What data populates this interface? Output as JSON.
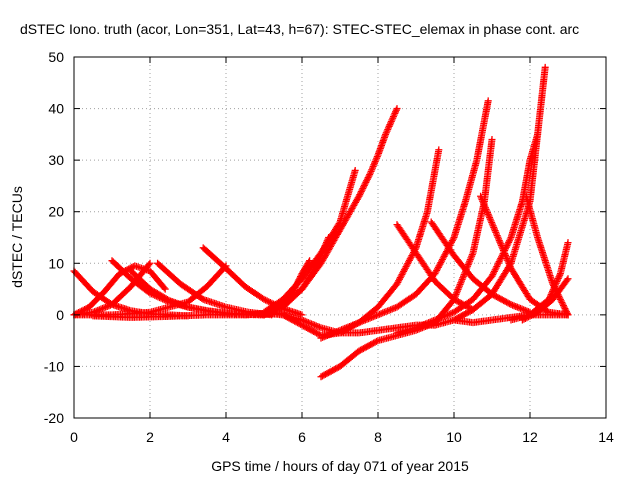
{
  "chart_data": {
    "type": "scatter",
    "title": "dSTEC Iono. truth (acor, Lon=351, Lat=43, h=67): STEC-STEC_elemax in phase cont. arc",
    "xlabel": "GPS time / hours of day 071 of year 2015",
    "ylabel": "dSTEC  / TECUs",
    "xlim": [
      0,
      14
    ],
    "ylim": [
      -20,
      50
    ],
    "xticks": [
      0,
      2,
      4,
      6,
      8,
      10,
      12,
      14
    ],
    "yticks": [
      -20,
      -10,
      0,
      10,
      20,
      30,
      40,
      50
    ],
    "grid": true,
    "marker": "plus",
    "color": "#ff0000",
    "series": [
      {
        "x": [
          0.0,
          0.5,
          1.0,
          1.5,
          2.0,
          2.5,
          3.0
        ],
        "y": [
          8.5,
          4.5,
          2.0,
          0.8,
          0.2,
          0.0,
          -0.2
        ]
      },
      {
        "x": [
          0.0,
          0.4,
          0.8,
          1.2,
          1.6,
          2.0,
          2.4
        ],
        "y": [
          0.0,
          1.5,
          4.5,
          8.0,
          9.5,
          8.5,
          5.0
        ]
      },
      {
        "x": [
          1.0,
          1.5,
          2.0,
          2.5,
          3.0,
          3.5,
          4.0,
          4.5,
          5.0
        ],
        "y": [
          10.5,
          7.0,
          4.2,
          2.5,
          1.5,
          0.8,
          0.3,
          0.1,
          0.0
        ]
      },
      {
        "x": [
          0.0,
          0.5,
          1.0,
          1.5,
          2.0
        ],
        "y": [
          0.0,
          0.5,
          2.0,
          5.5,
          10.0
        ]
      },
      {
        "x": [
          1.5,
          2.0,
          2.5,
          3.0,
          3.5,
          4.0,
          4.5,
          5.0
        ],
        "y": [
          8.5,
          5.0,
          2.8,
          1.5,
          0.8,
          0.3,
          0.1,
          0.0
        ]
      },
      {
        "x": [
          2.2,
          2.8,
          3.4,
          4.0,
          4.6,
          5.2
        ],
        "y": [
          10.0,
          6.0,
          3.0,
          1.5,
          0.5,
          0.0
        ]
      },
      {
        "x": [
          0.0,
          1.0,
          2.0,
          3.0,
          3.5,
          4.0
        ],
        "y": [
          0.0,
          0.0,
          0.5,
          2.5,
          5.5,
          9.5
        ]
      },
      {
        "x": [
          3.4,
          4.0,
          4.5,
          5.0,
          5.5,
          6.0
        ],
        "y": [
          13.0,
          9.0,
          5.5,
          3.0,
          1.2,
          0.0
        ]
      },
      {
        "x": [
          0.5,
          1.5,
          2.5,
          3.5,
          4.5,
          5.5
        ],
        "y": [
          -0.2,
          -0.5,
          -0.3,
          0.0,
          0.0,
          0.3
        ]
      },
      {
        "x": [
          4.5,
          5.0,
          5.5,
          6.0,
          6.5,
          7.0,
          7.5,
          8.0,
          8.5,
          9.0,
          9.5
        ],
        "y": [
          0.0,
          0.3,
          0.0,
          -1.0,
          -2.5,
          -3.5,
          -3.5,
          -3.0,
          -2.5,
          -2.0,
          -2.0
        ]
      },
      {
        "x": [
          5.0,
          5.5,
          5.8,
          6.0,
          6.2
        ],
        "y": [
          0.0,
          2.0,
          5.0,
          8.0,
          10.5
        ]
      },
      {
        "x": [
          5.0,
          5.5,
          6.0,
          6.3,
          6.5,
          6.7
        ],
        "y": [
          0.0,
          2.0,
          5.0,
          8.5,
          11.5,
          15.0
        ]
      },
      {
        "x": [
          5.0,
          5.5,
          6.0,
          6.5,
          7.0,
          7.2,
          7.4
        ],
        "y": [
          0.5,
          3.0,
          7.0,
          12.0,
          18.0,
          23.0,
          28.0
        ]
      },
      {
        "x": [
          5.0,
          5.5,
          6.0,
          6.5,
          7.0,
          7.5,
          7.8,
          8.0,
          8.2,
          8.5
        ],
        "y": [
          0.0,
          1.5,
          5.0,
          10.0,
          16.5,
          23.0,
          27.5,
          31.0,
          35.0,
          40.0
        ]
      },
      {
        "x": [
          5.5,
          6.0,
          6.5,
          7.0,
          7.5,
          8.0,
          8.5,
          9.0,
          9.3,
          9.6
        ],
        "y": [
          0.0,
          -2.0,
          -4.0,
          -3.5,
          -1.5,
          1.5,
          6.0,
          13.0,
          20.0,
          32.0
        ]
      },
      {
        "x": [
          6.5,
          7.0,
          7.5,
          8.0,
          8.5,
          9.0,
          9.5,
          10.0,
          10.3,
          10.6,
          10.9
        ],
        "y": [
          -4.5,
          -3.0,
          -1.5,
          0.0,
          1.5,
          4.0,
          8.0,
          15.0,
          22.0,
          30.0,
          41.5
        ]
      },
      {
        "x": [
          6.5,
          7.0,
          7.5,
          8.0,
          8.5,
          9.0,
          9.5,
          10.0,
          10.5,
          10.8,
          11.0
        ],
        "y": [
          -12.0,
          -10.0,
          -7.0,
          -5.0,
          -4.0,
          -3.0,
          -1.5,
          3.0,
          12.0,
          22.0,
          34.0
        ]
      },
      {
        "x": [
          8.5,
          9.0,
          9.5,
          10.0,
          10.5,
          11.0,
          11.5,
          11.8,
          12.0,
          12.2
        ],
        "y": [
          -3.5,
          -2.5,
          -1.0,
          0.5,
          3.0,
          7.5,
          15.0,
          22.0,
          30.0,
          35.0
        ]
      },
      {
        "x": [
          9.5,
          10.0,
          10.5,
          11.0,
          11.5,
          12.0,
          12.2,
          12.4
        ],
        "y": [
          -2.0,
          -1.0,
          1.0,
          4.0,
          10.0,
          22.0,
          35.0,
          48.0
        ]
      },
      {
        "x": [
          8.5,
          9.0,
          9.5,
          10.0,
          10.5
        ],
        "y": [
          17.5,
          12.0,
          6.5,
          3.0,
          1.0
        ]
      },
      {
        "x": [
          9.4,
          10.0,
          10.5,
          11.0,
          11.5,
          12.0
        ],
        "y": [
          18.0,
          11.5,
          7.0,
          4.0,
          2.0,
          0.5
        ]
      },
      {
        "x": [
          10.7,
          11.1,
          11.5,
          12.0,
          12.5,
          13.0
        ],
        "y": [
          23.0,
          16.0,
          9.0,
          3.0,
          0.5,
          0.0
        ]
      },
      {
        "x": [
          11.9,
          12.2,
          12.6,
          13.0
        ],
        "y": [
          23.0,
          15.0,
          6.0,
          0.0
        ]
      },
      {
        "x": [
          10.0,
          10.5,
          11.0,
          11.5,
          12.0,
          12.5,
          13.0
        ],
        "y": [
          -1.0,
          -1.5,
          -1.0,
          -0.5,
          0.0,
          0.0,
          0.0
        ]
      },
      {
        "x": [
          11.5,
          12.0,
          12.5,
          12.8,
          13.0
        ],
        "y": [
          -1.0,
          0.0,
          3.0,
          8.0,
          14.0
        ]
      },
      {
        "x": [
          11.8,
          12.2,
          12.6,
          13.0
        ],
        "y": [
          -1.0,
          0.5,
          3.0,
          7.0
        ]
      }
    ]
  }
}
